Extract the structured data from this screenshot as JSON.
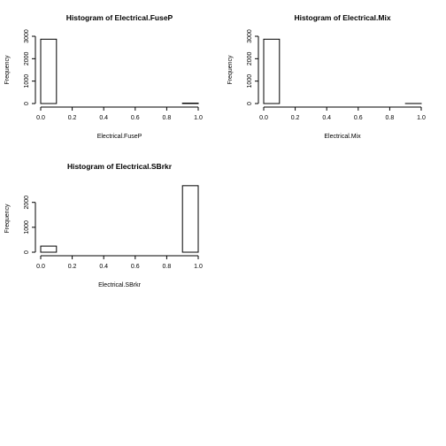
{
  "chart_data": [
    {
      "type": "bar",
      "title": "Histogram of  Electrical.FuseP",
      "xlabel": "Electrical.FuseP",
      "ylabel": "Frequency",
      "bin_edges": [
        0.0,
        0.1,
        0.2,
        0.3,
        0.4,
        0.5,
        0.6,
        0.7,
        0.8,
        0.9,
        1.0
      ],
      "values": [
        2870,
        0,
        0,
        0,
        0,
        0,
        0,
        0,
        0,
        18
      ],
      "xlim": [
        0,
        1
      ],
      "ylim": [
        0,
        3000
      ],
      "x_ticks": [
        "0.0",
        "0.2",
        "0.4",
        "0.6",
        "0.8",
        "1.0"
      ],
      "y_ticks": [
        "0",
        "1000",
        "2000",
        "3000"
      ],
      "grid": false
    },
    {
      "type": "bar",
      "title": "Histogram of  Electrical.Mix",
      "xlabel": "Electrical.Mix",
      "ylabel": "Frequency",
      "bin_edges": [
        0.0,
        0.1,
        0.2,
        0.3,
        0.4,
        0.5,
        0.6,
        0.7,
        0.8,
        0.9,
        1.0
      ],
      "values": [
        2870,
        0,
        0,
        0,
        0,
        0,
        0,
        0,
        0,
        2
      ],
      "xlim": [
        0,
        1
      ],
      "ylim": [
        0,
        3000
      ],
      "x_ticks": [
        "0.0",
        "0.2",
        "0.4",
        "0.6",
        "0.8",
        "1.0"
      ],
      "y_ticks": [
        "0",
        "1000",
        "2000",
        "3000"
      ],
      "grid": false
    },
    {
      "type": "bar",
      "title": "Histogram of  Electrical.SBrkr",
      "xlabel": "Electrical.SBrkr",
      "ylabel": "Frequency",
      "bin_edges": [
        0.0,
        0.1,
        0.2,
        0.3,
        0.4,
        0.5,
        0.6,
        0.7,
        0.8,
        0.9,
        1.0
      ],
      "values": [
        245,
        0,
        0,
        0,
        0,
        0,
        0,
        0,
        0,
        2670
      ],
      "xlim": [
        0,
        1
      ],
      "ylim": [
        0,
        2700
      ],
      "x_ticks": [
        "0.0",
        "0.2",
        "0.4",
        "0.6",
        "0.8",
        "1.0"
      ],
      "y_ticks": [
        "0",
        "1000",
        "2000"
      ],
      "grid": false
    }
  ]
}
